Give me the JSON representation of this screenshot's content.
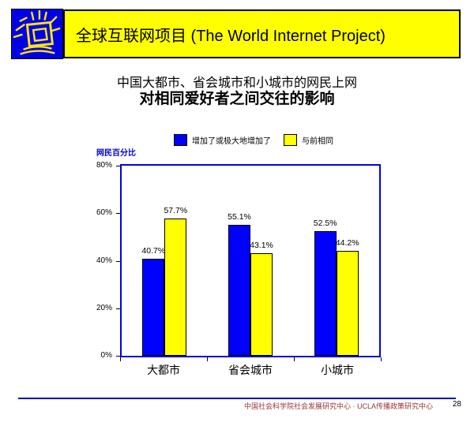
{
  "header": {
    "title": "全球互联网项目 (The World Internet Project)",
    "banner_bg": "#FFFF00",
    "logo_bg": "#0000E8",
    "logo_icon": "crt-monitor-rays-icon"
  },
  "subtitle": {
    "line1": "中国大都市、省会城市和小城市的网民上网",
    "line2": "对相同爱好者之间交往的影响"
  },
  "chart_data": {
    "type": "bar",
    "categories": [
      "大都市",
      "省会城市",
      "小城市"
    ],
    "series": [
      {
        "name": "增加了或极大地增加了",
        "color": "#0000FF",
        "values": [
          40.7,
          55.1,
          52.5
        ],
        "labels": [
          "40.7%",
          "55.1%",
          "52.5%"
        ]
      },
      {
        "name": "与前相同",
        "color": "#FFFF00",
        "values": [
          57.7,
          43.1,
          44.2
        ],
        "labels": [
          "57.7%",
          "43.1%",
          "44.2%"
        ]
      }
    ],
    "ylabel": "网民百分比",
    "ylim": [
      0,
      80
    ],
    "yticks": [
      {
        "label": "0%",
        "value": 0
      },
      {
        "label": "20%",
        "value": 20
      },
      {
        "label": "40%",
        "value": 40
      },
      {
        "label": "60%",
        "value": 60
      },
      {
        "label": "80%",
        "value": 80
      }
    ],
    "legend_position": "top",
    "grid": false,
    "axis_color": "#0000E0",
    "bar_outline": "#000000"
  },
  "footer": {
    "text": "中国社会科学院社会发展研究中心 · UCLA传播政策研究中心",
    "page_number": "28"
  }
}
